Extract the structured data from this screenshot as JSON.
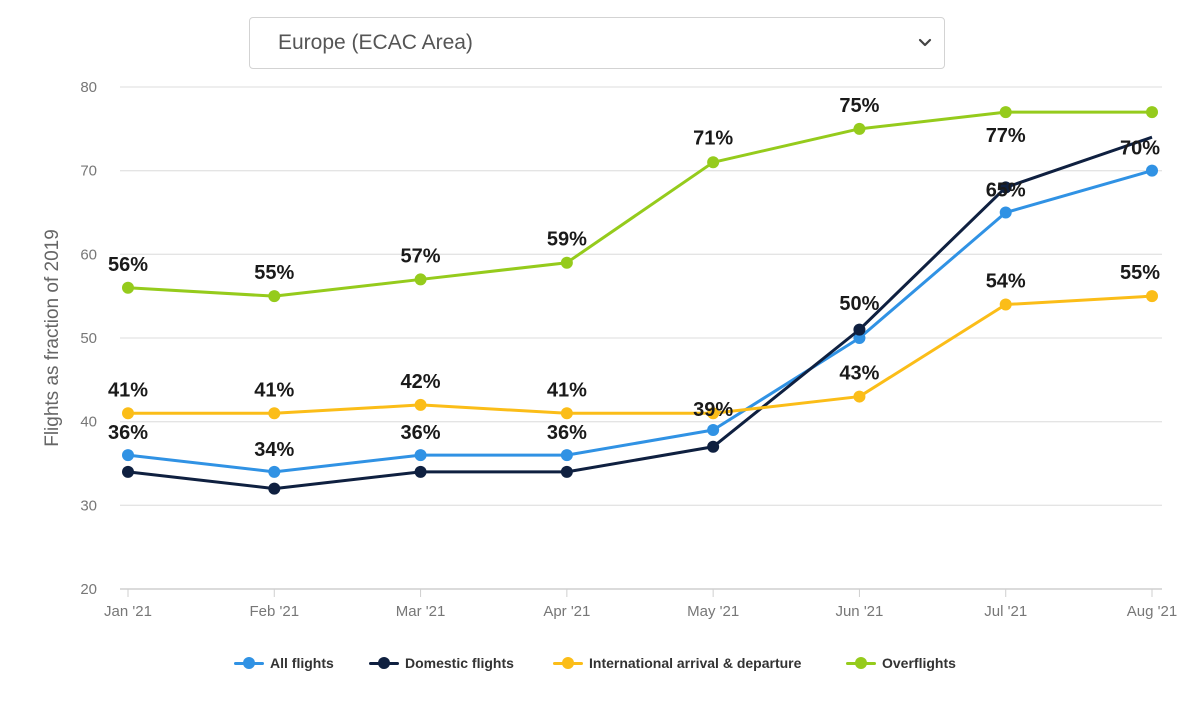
{
  "region_select": {
    "selected": "Europe (ECAC Area)",
    "icon": "chevron-down-icon"
  },
  "chart_data": {
    "type": "line",
    "title": "",
    "xlabel": "",
    "ylabel": "Flights as fraction of 2019",
    "ylim": [
      20,
      80
    ],
    "yticks": [
      20,
      30,
      40,
      50,
      60,
      70,
      80
    ],
    "grid": true,
    "legend_position": "bottom",
    "categories": [
      "Jan '21",
      "Feb '21",
      "Mar '21",
      "Apr '21",
      "May '21",
      "Jun '21",
      "Jul '21",
      "Aug '21"
    ],
    "series": [
      {
        "name": "All flights",
        "color": "#3092e4",
        "values": [
          36,
          34,
          36,
          36,
          39,
          50,
          65,
          70
        ],
        "labels": [
          "36%",
          "34%",
          "36%",
          "36%",
          "39%",
          "50%",
          "65%",
          "70%"
        ]
      },
      {
        "name": "Domestic flights",
        "color": "#0f2040",
        "values": [
          34,
          32,
          34,
          34,
          37,
          51,
          68,
          74
        ],
        "labels": []
      },
      {
        "name": "International arrival & departure",
        "color": "#fbbd18",
        "values": [
          41,
          41,
          42,
          41,
          41,
          43,
          54,
          55
        ],
        "labels": [
          "41%",
          "41%",
          "42%",
          "41%",
          "",
          "43%",
          "54%",
          "55%"
        ]
      },
      {
        "name": "Overflights",
        "color": "#95cb1c",
        "values": [
          56,
          55,
          57,
          59,
          71,
          75,
          77,
          77
        ],
        "labels": [
          "56%",
          "55%",
          "57%",
          "59%",
          "71%",
          "75%",
          "77%",
          ""
        ]
      }
    ]
  }
}
